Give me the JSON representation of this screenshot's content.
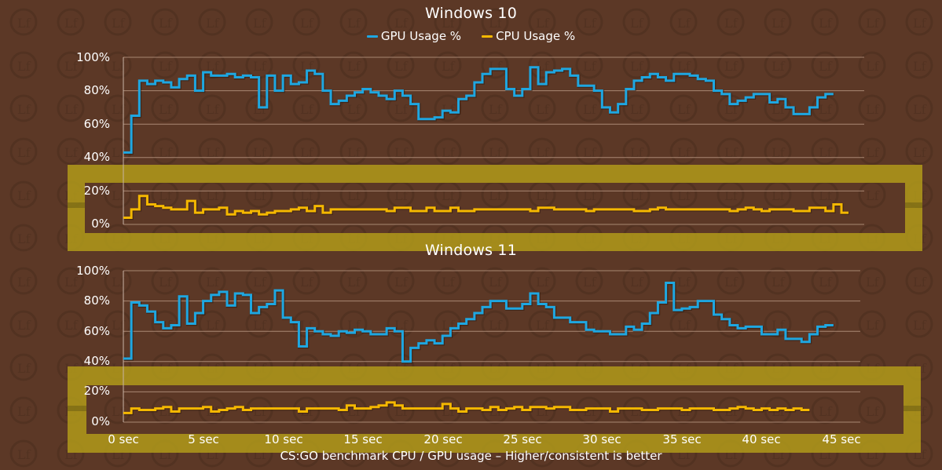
{
  "chart_data": [
    {
      "type": "line",
      "title": "Windows 10",
      "legend": [
        "GPU Usage %",
        "CPU Usage %"
      ],
      "legend_position": "top",
      "xlabel": "",
      "ylabel": "",
      "yticks": [
        "0%",
        "20%",
        "40%",
        "60%",
        "80%",
        "100%"
      ],
      "ylim": [
        0,
        100
      ],
      "xlim": [
        0,
        45
      ],
      "grid": true,
      "step": 0.5,
      "series": [
        {
          "name": "GPU Usage %",
          "color": "#1ea7e1",
          "values": [
            43,
            65,
            86,
            84,
            86,
            85,
            82,
            87,
            89,
            80,
            91,
            89,
            89,
            90,
            88,
            89,
            88,
            70,
            89,
            80,
            89,
            84,
            85,
            92,
            90,
            80,
            72,
            74,
            77,
            79,
            81,
            79,
            77,
            75,
            80,
            77,
            72,
            63,
            63,
            64,
            68,
            67,
            75,
            77,
            85,
            90,
            93,
            93,
            81,
            77,
            81,
            94,
            84,
            91,
            92,
            93,
            89,
            83,
            83,
            80,
            70,
            67,
            72,
            81,
            86,
            88,
            90,
            88,
            86,
            90,
            90,
            89,
            87,
            86,
            80,
            78,
            72,
            74,
            76,
            78,
            78,
            73,
            75,
            70,
            66,
            66,
            70,
            76,
            78
          ]
        },
        {
          "name": "CPU Usage %",
          "color": "#f5b800",
          "values": [
            4,
            9,
            17,
            12,
            11,
            10,
            9,
            9,
            14,
            7,
            9,
            9,
            10,
            6,
            8,
            7,
            8,
            6,
            7,
            8,
            8,
            9,
            10,
            8,
            11,
            7,
            9,
            9,
            9,
            9,
            9,
            9,
            9,
            8,
            10,
            10,
            8,
            8,
            10,
            8,
            8,
            10,
            8,
            8,
            9,
            9,
            9,
            9,
            9,
            9,
            9,
            8,
            10,
            10,
            9,
            9,
            9,
            9,
            8,
            9,
            9,
            9,
            9,
            9,
            8,
            8,
            9,
            10,
            9,
            9,
            9,
            9,
            9,
            9,
            9,
            9,
            8,
            9,
            10,
            9,
            8,
            9,
            9,
            9,
            8,
            8,
            10,
            10,
            8,
            12,
            7
          ]
        }
      ]
    },
    {
      "type": "line",
      "title": "Windows 11",
      "xlabel": "",
      "ylabel": "",
      "yticks": [
        "0%",
        "20%",
        "40%",
        "60%",
        "80%",
        "100%"
      ],
      "ylim": [
        0,
        100
      ],
      "xticks": [
        "0 sec",
        "5 sec",
        "10 sec",
        "15 sec",
        "20 sec",
        "25 sec",
        "30 sec",
        "35 sec",
        "40 sec",
        "45 sec"
      ],
      "xlim": [
        0,
        45
      ],
      "grid": true,
      "step": 0.5,
      "series": [
        {
          "name": "GPU Usage %",
          "color": "#1ea7e1",
          "values": [
            42,
            79,
            77,
            73,
            66,
            62,
            64,
            83,
            65,
            72,
            80,
            84,
            86,
            77,
            85,
            84,
            72,
            76,
            78,
            87,
            69,
            66,
            50,
            62,
            60,
            58,
            57,
            60,
            59,
            61,
            60,
            58,
            58,
            62,
            60,
            40,
            49,
            52,
            54,
            52,
            57,
            62,
            65,
            68,
            72,
            76,
            80,
            80,
            75,
            75,
            78,
            85,
            78,
            76,
            69,
            69,
            66,
            66,
            61,
            60,
            60,
            58,
            58,
            63,
            61,
            65,
            72,
            79,
            92,
            74,
            75,
            76,
            80,
            80,
            71,
            68,
            64,
            62,
            63,
            63,
            58,
            58,
            61,
            55,
            55,
            53,
            58,
            63,
            64
          ]
        },
        {
          "name": "CPU Usage %",
          "color": "#f5b800",
          "values": [
            6,
            9,
            8,
            8,
            9,
            10,
            7,
            9,
            9,
            9,
            10,
            7,
            8,
            9,
            10,
            8,
            9,
            9,
            9,
            9,
            9,
            9,
            7,
            9,
            9,
            9,
            9,
            8,
            11,
            9,
            9,
            10,
            11,
            13,
            11,
            9,
            9,
            9,
            9,
            9,
            12,
            9,
            7,
            9,
            9,
            8,
            10,
            8,
            9,
            10,
            8,
            10,
            10,
            9,
            10,
            10,
            8,
            8,
            9,
            9,
            9,
            7,
            9,
            9,
            9,
            8,
            8,
            9,
            9,
            9,
            8,
            9,
            9,
            9,
            8,
            8,
            9,
            10,
            9,
            8,
            9,
            8,
            9,
            8,
            9,
            8
          ]
        }
      ]
    }
  ],
  "page": {
    "chart1_title": "Windows 10",
    "chart2_title": "Windows 11",
    "legend_gpu": "GPU Usage %",
    "legend_cpu": "CPU Usage %",
    "caption": "CS:GO benchmark CPU / GPU usage – Higher/consistent is better",
    "colors": {
      "background": "#5c3826",
      "gpu": "#1ea7e1",
      "cpu": "#f5b800",
      "highlight": "#b09a1a",
      "grid": "#9c7a66"
    },
    "yticks": [
      "100%",
      "80%",
      "60%",
      "40%",
      "20%",
      "0%"
    ],
    "xticks": [
      "0 sec",
      "5 sec",
      "10 sec",
      "15 sec",
      "20 sec",
      "25 sec",
      "30 sec",
      "35 sec",
      "40 sec",
      "45 sec"
    ]
  }
}
